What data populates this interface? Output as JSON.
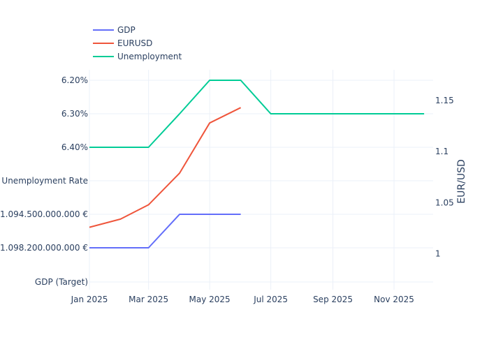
{
  "chart_data": {
    "type": "line",
    "x_axis": {
      "tick_labels": [
        "Jan 2025",
        "Mar 2025",
        "May 2025",
        "Jul 2025",
        "Sep 2025",
        "Nov 2025"
      ],
      "tick_dates": [
        "2025-01-01",
        "2025-03-01",
        "2025-05-01",
        "2025-07-01",
        "2025-09-01",
        "2025-11-01"
      ],
      "range": [
        "2025-01-01",
        "2025-12-10"
      ],
      "grid": true
    },
    "y_left": {
      "type": "category",
      "categories": [
        "GDP (Target)",
        "1.098.200.000.000 €",
        "1.094.500.000.000 €",
        "Unemployment Rate",
        "6.40%",
        "6.30%",
        "6.20%"
      ],
      "grid": true
    },
    "y_right": {
      "title": "EUR/USD",
      "range": [
        0.965,
        1.18
      ],
      "tick_values": [
        1,
        1.05,
        1.1,
        1.15
      ],
      "tick_labels": [
        "1",
        "1.05",
        "1.1",
        "1.15"
      ]
    },
    "legend": {
      "placement": "top-left"
    },
    "series": [
      {
        "name": "GDP",
        "axis": "left",
        "color": "#636efa",
        "x": [
          "2025-01-01",
          "2025-02-01",
          "2025-03-01",
          "2025-04-01",
          "2025-05-01",
          "2025-06-01"
        ],
        "y": [
          "1.098.200.000.000 €",
          "1.098.200.000.000 €",
          "1.098.200.000.000 €",
          "1.094.500.000.000 €",
          "1.094.500.000.000 €",
          "1.094.500.000.000 €"
        ]
      },
      {
        "name": "EURUSD",
        "axis": "right",
        "color": "#ef553b",
        "x": [
          "2025-01-01",
          "2025-02-01",
          "2025-03-01",
          "2025-04-01",
          "2025-05-01",
          "2025-06-01"
        ],
        "y": [
          1.026,
          1.034,
          1.048,
          1.079,
          1.128,
          1.143
        ]
      },
      {
        "name": "Unemployment",
        "axis": "left",
        "color": "#00cc96",
        "x": [
          "2025-01-01",
          "2025-02-01",
          "2025-03-01",
          "2025-04-01",
          "2025-05-01",
          "2025-06-01",
          "2025-07-01",
          "2025-08-01",
          "2025-09-01",
          "2025-10-01",
          "2025-11-01",
          "2025-12-01"
        ],
        "y": [
          "6.40%",
          "6.40%",
          "6.40%",
          "6.30%",
          "6.20%",
          "6.20%",
          "6.30%",
          "6.30%",
          "6.30%",
          "6.30%",
          "6.30%",
          "6.30%"
        ]
      }
    ]
  }
}
